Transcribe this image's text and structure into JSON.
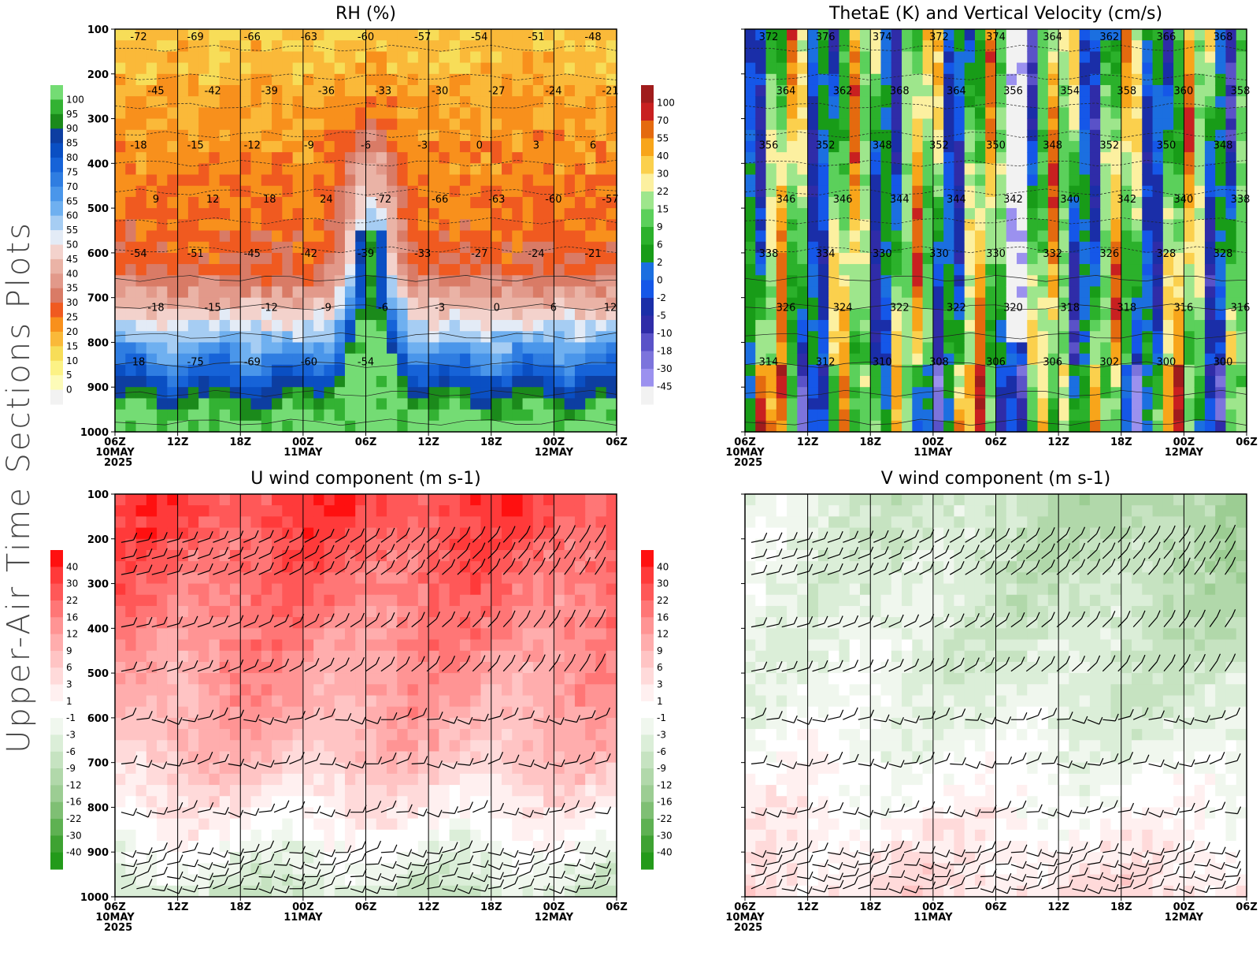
{
  "page_title": "Upper-Air Time Sections Plots",
  "chart_data": [
    {
      "id": "rh",
      "type": "heatmap",
      "title": "RH (%)",
      "xlabel": "",
      "ylabel": "",
      "time_ticks": [
        "06Z",
        "12Z",
        "18Z",
        "00Z",
        "06Z",
        "12Z",
        "18Z",
        "00Z",
        "06Z"
      ],
      "date_labels": {
        "0": "10MAY",
        "3": "11MAY",
        "7": "12MAY"
      },
      "year_label": "2025",
      "pressure_ticks": [
        100,
        200,
        300,
        400,
        500,
        600,
        700,
        800,
        900,
        1000
      ],
      "colorbar_levels": [
        "100",
        "95",
        "90",
        "85",
        "80",
        "75",
        "70",
        "65",
        "60",
        "55",
        "50",
        "45",
        "40",
        "35",
        "30",
        "25",
        "20",
        "15",
        "10",
        "5",
        "0"
      ],
      "colorbar_colors": [
        "#74dc74",
        "#33b233",
        "#1b8a1b",
        "#0d3ea1",
        "#0a4fc3",
        "#1663d8",
        "#2f7de1",
        "#4a96ea",
        "#6fb0f0",
        "#a6cdf3",
        "#e3ebf6",
        "#f3d2cc",
        "#eab3a6",
        "#e2998a",
        "#d97b66",
        "#f05a20",
        "#f8901c",
        "#fab939",
        "#f7dd58",
        "#fcf285",
        "#fdfbb8",
        "#f2f2f2"
      ],
      "contour_labels": [
        "-72",
        "-69",
        "-66",
        "-63",
        "-60",
        "-57",
        "-54",
        "-51",
        "-48",
        "-45",
        "-42",
        "-39",
        "-36",
        "-33",
        "-30",
        "-27",
        "-24",
        "-21",
        "-18",
        "-15",
        "-12",
        "-9",
        "-6",
        "-3",
        "0",
        "3",
        "6",
        "9",
        "12",
        "18",
        "24",
        "-72",
        "-66",
        "-63",
        "-60",
        "-57",
        "-54",
        "-51",
        "-45",
        "-42",
        "-39",
        "-33",
        "-27",
        "-24",
        "-21",
        "-18",
        "-15",
        "-12",
        "-9",
        "-6",
        "-3",
        "0",
        "6",
        "12",
        "18",
        "-75",
        "-69",
        "-60",
        "-54"
      ]
    },
    {
      "id": "thetae",
      "type": "heatmap",
      "title": "ThetaE (K) and Vertical Velocity (cm/s)",
      "xlabel": "",
      "ylabel": "",
      "time_ticks": [
        "06Z",
        "12Z",
        "18Z",
        "00Z",
        "06Z",
        "12Z",
        "18Z",
        "00Z",
        "06Z"
      ],
      "date_labels": {
        "0": "10MAY",
        "3": "11MAY",
        "7": "12MAY"
      },
      "year_label": "2025",
      "colorbar_levels": [
        "100",
        "70",
        "55",
        "40",
        "30",
        "22",
        "15",
        "9",
        "6",
        "2",
        "0",
        "-2",
        "-5",
        "-10",
        "-18",
        "-30",
        "-45"
      ],
      "colorbar_colors": [
        "#a01c1c",
        "#c82020",
        "#e46a0f",
        "#f8a51a",
        "#fbd04d",
        "#fcf0a0",
        "#9ee68c",
        "#5bd05b",
        "#2bb12b",
        "#189c18",
        "#1b6fe0",
        "#1557e8",
        "#1a2ea8",
        "#2f2ca8",
        "#5a52c8",
        "#7c74dc",
        "#9b91ef",
        "#f2f2f2"
      ],
      "contour_labels": [
        "372",
        "376",
        "374",
        "372",
        "374",
        "364",
        "362",
        "366",
        "368",
        "364",
        "362",
        "368",
        "364",
        "356",
        "354",
        "358",
        "360",
        "358",
        "356",
        "352",
        "348",
        "352",
        "350",
        "348",
        "352",
        "350",
        "348",
        "346",
        "346",
        "344",
        "344",
        "342",
        "340",
        "342",
        "340",
        "338",
        "338",
        "334",
        "330",
        "330",
        "330",
        "332",
        "326",
        "328",
        "328",
        "326",
        "324",
        "322",
        "322",
        "320",
        "318",
        "318",
        "316",
        "316",
        "314",
        "312",
        "310",
        "308",
        "306",
        "306",
        "302",
        "300",
        "300"
      ]
    },
    {
      "id": "uwind",
      "type": "heatmap",
      "title": "U wind component (m s-1)",
      "xlabel": "",
      "ylabel": "",
      "time_ticks": [
        "06Z",
        "12Z",
        "18Z",
        "00Z",
        "06Z",
        "12Z",
        "18Z",
        "00Z",
        "06Z"
      ],
      "date_labels": {
        "0": "10MAY",
        "3": "11MAY",
        "7": "12MAY"
      },
      "year_label": "2025",
      "pressure_ticks": [
        100,
        200,
        300,
        400,
        500,
        600,
        700,
        800,
        900,
        1000
      ],
      "colorbar_levels": [
        "40",
        "30",
        "22",
        "16",
        "12",
        "9",
        "6",
        "3",
        "1",
        "-1",
        "-3",
        "-6",
        "-9",
        "-12",
        "-16",
        "-22",
        "-30",
        "-40"
      ],
      "colorbar_colors": [
        "#ff1010",
        "#ff3a3a",
        "#ff5858",
        "#ff7676",
        "#ff9494",
        "#ffadad",
        "#ffc4c4",
        "#ffdada",
        "#fff0f0",
        "#ffffff",
        "#f0f7ee",
        "#dbeed8",
        "#c6e3c1",
        "#b1d8aa",
        "#9ccd93",
        "#7fbf74",
        "#5eb152",
        "#3ea232",
        "#239a1a"
      ]
    },
    {
      "id": "vwind",
      "type": "heatmap",
      "title": "V wind component (m s-1)",
      "xlabel": "",
      "ylabel": "",
      "time_ticks": [
        "06Z",
        "12Z",
        "18Z",
        "00Z",
        "06Z",
        "12Z",
        "18Z",
        "00Z",
        "06Z"
      ],
      "date_labels": {
        "0": "10MAY",
        "3": "11MAY",
        "7": "12MAY"
      },
      "year_label": "2025",
      "colorbar_levels": [
        "40",
        "30",
        "22",
        "16",
        "12",
        "9",
        "6",
        "3",
        "1",
        "-1",
        "-3",
        "-6",
        "-9",
        "-12",
        "-16",
        "-22",
        "-30",
        "-40"
      ],
      "colorbar_colors": [
        "#ff1010",
        "#ff3a3a",
        "#ff5858",
        "#ff7676",
        "#ff9494",
        "#ffadad",
        "#ffc4c4",
        "#ffdada",
        "#fff0f0",
        "#ffffff",
        "#f0f7ee",
        "#dbeed8",
        "#c6e3c1",
        "#b1d8aa",
        "#9ccd93",
        "#7fbf74",
        "#5eb152",
        "#3ea232",
        "#239a1a"
      ]
    }
  ]
}
